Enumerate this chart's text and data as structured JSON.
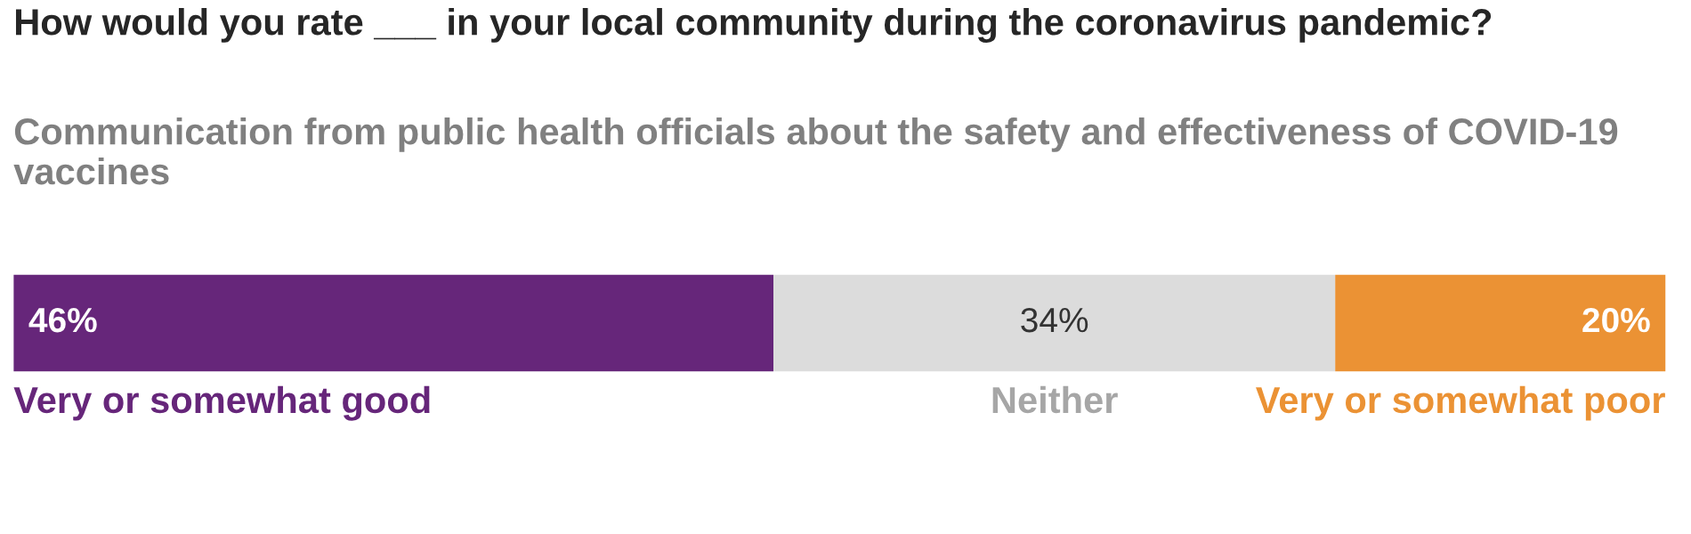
{
  "chart_data": {
    "type": "bar",
    "orientation": "horizontal",
    "stacked": true,
    "title": "How would you rate ___ in your local community during the coronavirus pandemic?",
    "subtitle": "Communication from public health officials about the safety and effectiveness of COVID-19 vaccines",
    "categories": [
      null
    ],
    "series": [
      {
        "name": "Very or somewhat good",
        "color": "#66267a",
        "values": [
          46
        ],
        "value_labels": [
          "46%"
        ]
      },
      {
        "name": "Neither",
        "color": "#dcdcdc",
        "values": [
          34
        ],
        "value_labels": [
          "34%"
        ]
      },
      {
        "name": "Very or somewhat poor",
        "color": "#eb9234",
        "values": [
          20
        ],
        "value_labels": [
          "20%"
        ]
      }
    ],
    "legend": false
  }
}
